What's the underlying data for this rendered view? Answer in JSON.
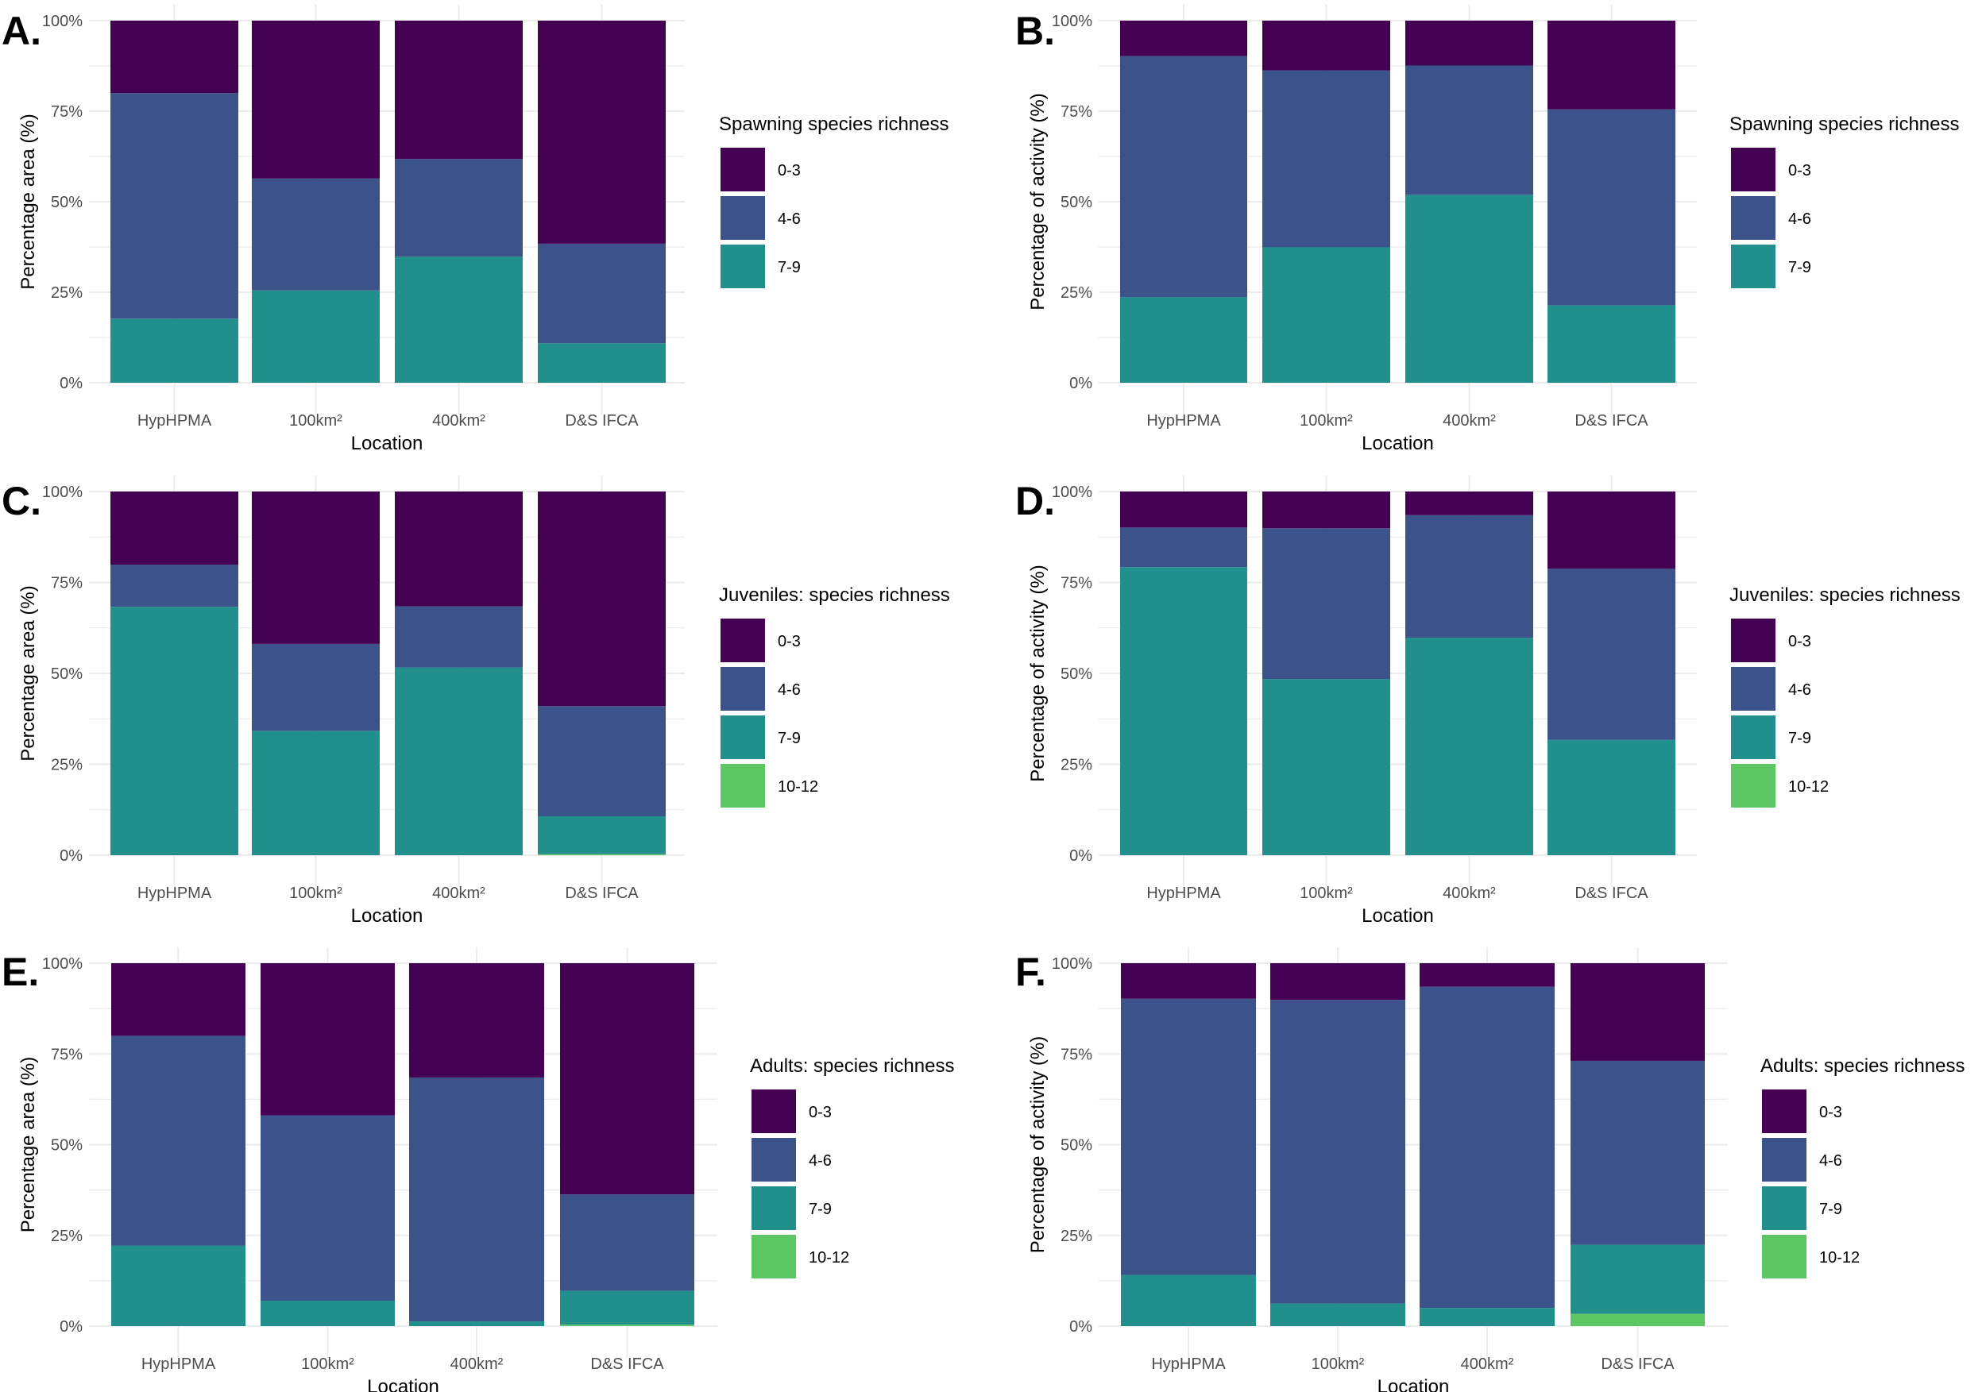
{
  "figure": {
    "colors": {
      "0-3": "#440154",
      "4-6": "#3B528B",
      "7-9": "#21908C",
      "10-12": "#5DC863"
    }
  },
  "chart_data": [
    {
      "panel": "A.",
      "type": "bar",
      "stacked": true,
      "title": "",
      "xlabel": "Location",
      "ylabel": "Percentage area (%)",
      "ylim": [
        0,
        100
      ],
      "yticks": [
        "0%",
        "25%",
        "50%",
        "75%",
        "100%"
      ],
      "grid": true,
      "categories": [
        "HypHPMA",
        "100km²",
        "400km²",
        "D&S IFCA"
      ],
      "legend": {
        "title": "Spawning species richness",
        "placement": "right",
        "entries": [
          "0-3",
          "4-6",
          "7-9"
        ]
      },
      "series": [
        {
          "name": "7-9",
          "values": [
            17.7,
            25.5,
            34.8,
            10.9
          ]
        },
        {
          "name": "4-6",
          "values": [
            62.3,
            30.9,
            27.0,
            27.5
          ]
        },
        {
          "name": "0-3",
          "values": [
            20.0,
            43.6,
            38.2,
            61.6
          ]
        }
      ]
    },
    {
      "panel": "B.",
      "type": "bar",
      "stacked": true,
      "title": "",
      "xlabel": "Location",
      "ylabel": "Percentage of activity (%)",
      "ylim": [
        0,
        100
      ],
      "yticks": [
        "0%",
        "25%",
        "50%",
        "75%",
        "100%"
      ],
      "grid": true,
      "categories": [
        "HypHPMA",
        "100km²",
        "400km²",
        "D&S IFCA"
      ],
      "legend": {
        "title": "Spawning species richness",
        "placement": "right",
        "entries": [
          "0-3",
          "4-6",
          "7-9"
        ]
      },
      "series": [
        {
          "name": "7-9",
          "values": [
            23.6,
            37.4,
            51.9,
            21.4
          ]
        },
        {
          "name": "4-6",
          "values": [
            66.6,
            48.9,
            35.7,
            54.1
          ]
        },
        {
          "name": "0-3",
          "values": [
            9.8,
            13.7,
            12.4,
            24.5
          ]
        }
      ]
    },
    {
      "panel": "C.",
      "type": "bar",
      "stacked": true,
      "title": "",
      "xlabel": "Location",
      "ylabel": "Percentage area (%)",
      "ylim": [
        0,
        100
      ],
      "yticks": [
        "0%",
        "25%",
        "50%",
        "75%",
        "100%"
      ],
      "grid": true,
      "categories": [
        "HypHPMA",
        "100km²",
        "400km²",
        "D&S IFCA"
      ],
      "legend": {
        "title": "Juveniles: species richness",
        "placement": "right",
        "entries": [
          "0-3",
          "4-6",
          "7-9",
          "10-12"
        ]
      },
      "series": [
        {
          "name": "10-12",
          "values": [
            0.0,
            0.0,
            0.0,
            0.3
          ]
        },
        {
          "name": "7-9",
          "values": [
            68.3,
            34.2,
            51.6,
            10.4
          ]
        },
        {
          "name": "4-6",
          "values": [
            11.6,
            23.9,
            16.8,
            30.3
          ]
        },
        {
          "name": "0-3",
          "values": [
            20.1,
            41.9,
            31.6,
            59.0
          ]
        }
      ]
    },
    {
      "panel": "D.",
      "type": "bar",
      "stacked": true,
      "title": "",
      "xlabel": "Location",
      "ylabel": "Percentage of activity (%)",
      "ylim": [
        0,
        100
      ],
      "yticks": [
        "0%",
        "25%",
        "50%",
        "75%",
        "100%"
      ],
      "grid": true,
      "categories": [
        "HypHPMA",
        "100km²",
        "400km²",
        "D&S IFCA"
      ],
      "legend": {
        "title": "Juveniles: species richness",
        "placement": "right",
        "entries": [
          "0-3",
          "4-6",
          "7-9",
          "10-12"
        ]
      },
      "series": [
        {
          "name": "10-12",
          "values": [
            0.0,
            0.0,
            0.0,
            0.0
          ]
        },
        {
          "name": "7-9",
          "values": [
            79.2,
            48.4,
            59.8,
            31.7
          ]
        },
        {
          "name": "4-6",
          "values": [
            10.9,
            41.5,
            33.7,
            47.1
          ]
        },
        {
          "name": "0-3",
          "values": [
            9.9,
            10.1,
            6.5,
            21.2
          ]
        }
      ]
    },
    {
      "panel": "E.",
      "type": "bar",
      "stacked": true,
      "title": "",
      "xlabel": "Location",
      "ylabel": "Percentage area (%)",
      "ylim": [
        0,
        100
      ],
      "yticks": [
        "0%",
        "25%",
        "50%",
        "75%",
        "100%"
      ],
      "grid": true,
      "categories": [
        "HypHPMA",
        "100km²",
        "400km²",
        "D&S IFCA"
      ],
      "legend": {
        "title": "Adults: species richness",
        "placement": "right",
        "entries": [
          "0-3",
          "4-6",
          "7-9",
          "10-12"
        ]
      },
      "series": [
        {
          "name": "10-12",
          "values": [
            0.0,
            0.0,
            0.0,
            0.4
          ]
        },
        {
          "name": "7-9",
          "values": [
            22.2,
            7.0,
            1.3,
            9.3
          ]
        },
        {
          "name": "4-6",
          "values": [
            57.8,
            51.1,
            67.2,
            26.6
          ]
        },
        {
          "name": "0-3",
          "values": [
            20.0,
            41.9,
            31.5,
            63.7
          ]
        }
      ]
    },
    {
      "panel": "F.",
      "type": "bar",
      "stacked": true,
      "title": "",
      "xlabel": "Location",
      "ylabel": "Percentage of activity (%)",
      "ylim": [
        0,
        100
      ],
      "yticks": [
        "0%",
        "25%",
        "50%",
        "75%",
        "100%"
      ],
      "grid": true,
      "categories": [
        "HypHPMA",
        "100km²",
        "400km²",
        "D&S IFCA"
      ],
      "legend": {
        "title": "Adults: species richness",
        "placement": "right",
        "entries": [
          "0-3",
          "4-6",
          "7-9",
          "10-12"
        ]
      },
      "series": [
        {
          "name": "10-12",
          "values": [
            0.0,
            0.0,
            0.0,
            3.4
          ]
        },
        {
          "name": "7-9",
          "values": [
            14.1,
            6.2,
            5.0,
            19.0
          ]
        },
        {
          "name": "4-6",
          "values": [
            76.1,
            83.7,
            88.5,
            50.7
          ]
        },
        {
          "name": "0-3",
          "values": [
            9.8,
            10.1,
            6.5,
            26.9
          ]
        }
      ]
    }
  ]
}
